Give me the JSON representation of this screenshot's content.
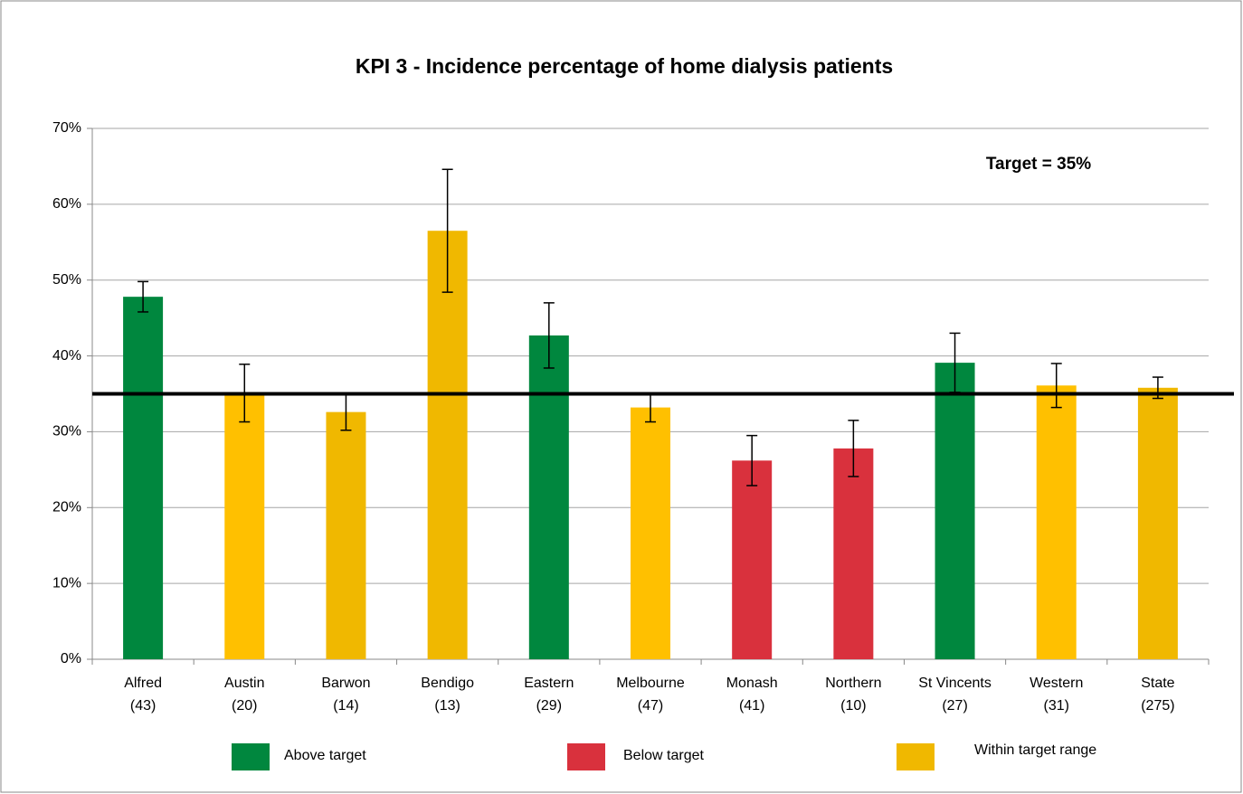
{
  "chart_data": {
    "type": "bar",
    "title": "KPI 3 - Incidence percentage of home dialysis patients",
    "categories": [
      "Alfred",
      "Austin",
      "Barwon",
      "Bendigo",
      "Eastern",
      "Melbourne",
      "Monash",
      "Northern",
      "St Vincents",
      "Western",
      "State"
    ],
    "category_sublabels": [
      "(43)",
      "(20)",
      "(14)",
      "(13)",
      "(29)",
      "(47)",
      "(41)",
      "(10)",
      "(27)",
      "(31)",
      "(275)"
    ],
    "values": [
      47.8,
      35.1,
      32.6,
      56.5,
      42.7,
      33.2,
      26.2,
      27.8,
      39.1,
      36.1,
      35.8
    ],
    "errors": [
      2.0,
      3.8,
      2.4,
      8.1,
      4.3,
      1.9,
      3.3,
      3.7,
      3.9,
      2.9,
      1.4
    ],
    "colors": [
      "#00873e",
      "#ffc000",
      "#f0b800",
      "#f0b800",
      "#00873e",
      "#ffc000",
      "#d9313d",
      "#d9313d",
      "#00873e",
      "#ffc000",
      "#f0b800"
    ],
    "ylim": [
      0,
      70
    ],
    "yticks": [
      {
        "value": 0,
        "label": "0%"
      },
      {
        "value": 10,
        "label": "10%"
      },
      {
        "value": 20,
        "label": "20%"
      },
      {
        "value": 30,
        "label": "30%"
      },
      {
        "value": 40,
        "label": "40%"
      },
      {
        "value": 50,
        "label": "50%"
      },
      {
        "value": 60,
        "label": "60%"
      },
      {
        "value": 70,
        "label": "70%"
      }
    ],
    "grid": true,
    "target": 35,
    "annotation": "Target  = 35%",
    "legend": [
      {
        "name": "Above target",
        "color": "#00873e"
      },
      {
        "name": "Below target",
        "color": "#d9313d"
      },
      {
        "name": "Within target  range",
        "color": "#f0b800"
      }
    ]
  }
}
